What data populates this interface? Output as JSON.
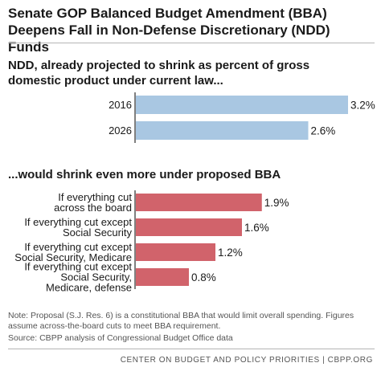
{
  "title_lines": [
    "Senate GOP Balanced Budget Amendment (BBA)",
    "Deepens Fall in Non-Defense Discretionary (NDD) Funds"
  ],
  "notes": {
    "note": "Note: Proposal (S.J. Res. 6) is a constitutional BBA that would limit overall spending. Figures assume across-the-board cuts to meet BBA requirement.",
    "source": "Source: CBPP analysis of Congressional Budget Office data"
  },
  "footer": "CENTER ON BUDGET AND POLICY PRIORITIES | CBPP.ORG",
  "colors": {
    "top_bars": "#a9c7e2",
    "bottom_bars": "#d1636b",
    "axis": "#000000"
  },
  "chart_data": [
    {
      "type": "bar",
      "orientation": "horizontal",
      "title_lines": [
        "NDD, already projected to shrink as percent of gross",
        "domestic product under current law..."
      ],
      "categories": [
        [
          "2016"
        ],
        [
          "2026"
        ]
      ],
      "values": [
        3.2,
        2.6
      ],
      "value_labels": [
        "3.2%",
        "2.6%"
      ],
      "xlim": [
        0,
        3.2
      ],
      "grid": false,
      "legend": "none"
    },
    {
      "type": "bar",
      "orientation": "horizontal",
      "title_lines": [
        "...would shrink even more under proposed BBA"
      ],
      "categories": [
        [
          "If everything cut",
          "across the board"
        ],
        [
          "If everything cut except",
          "Social Security"
        ],
        [
          "If everything cut except",
          "Social Security, Medicare"
        ],
        [
          "If everything cut except",
          "Social Security,",
          "Medicare, defense"
        ]
      ],
      "values": [
        1.9,
        1.6,
        1.2,
        0.8
      ],
      "value_labels": [
        "1.9%",
        "1.6%",
        "1.2%",
        "0.8%"
      ],
      "xlim": [
        0,
        3.2
      ],
      "grid": false,
      "legend": "none"
    }
  ]
}
